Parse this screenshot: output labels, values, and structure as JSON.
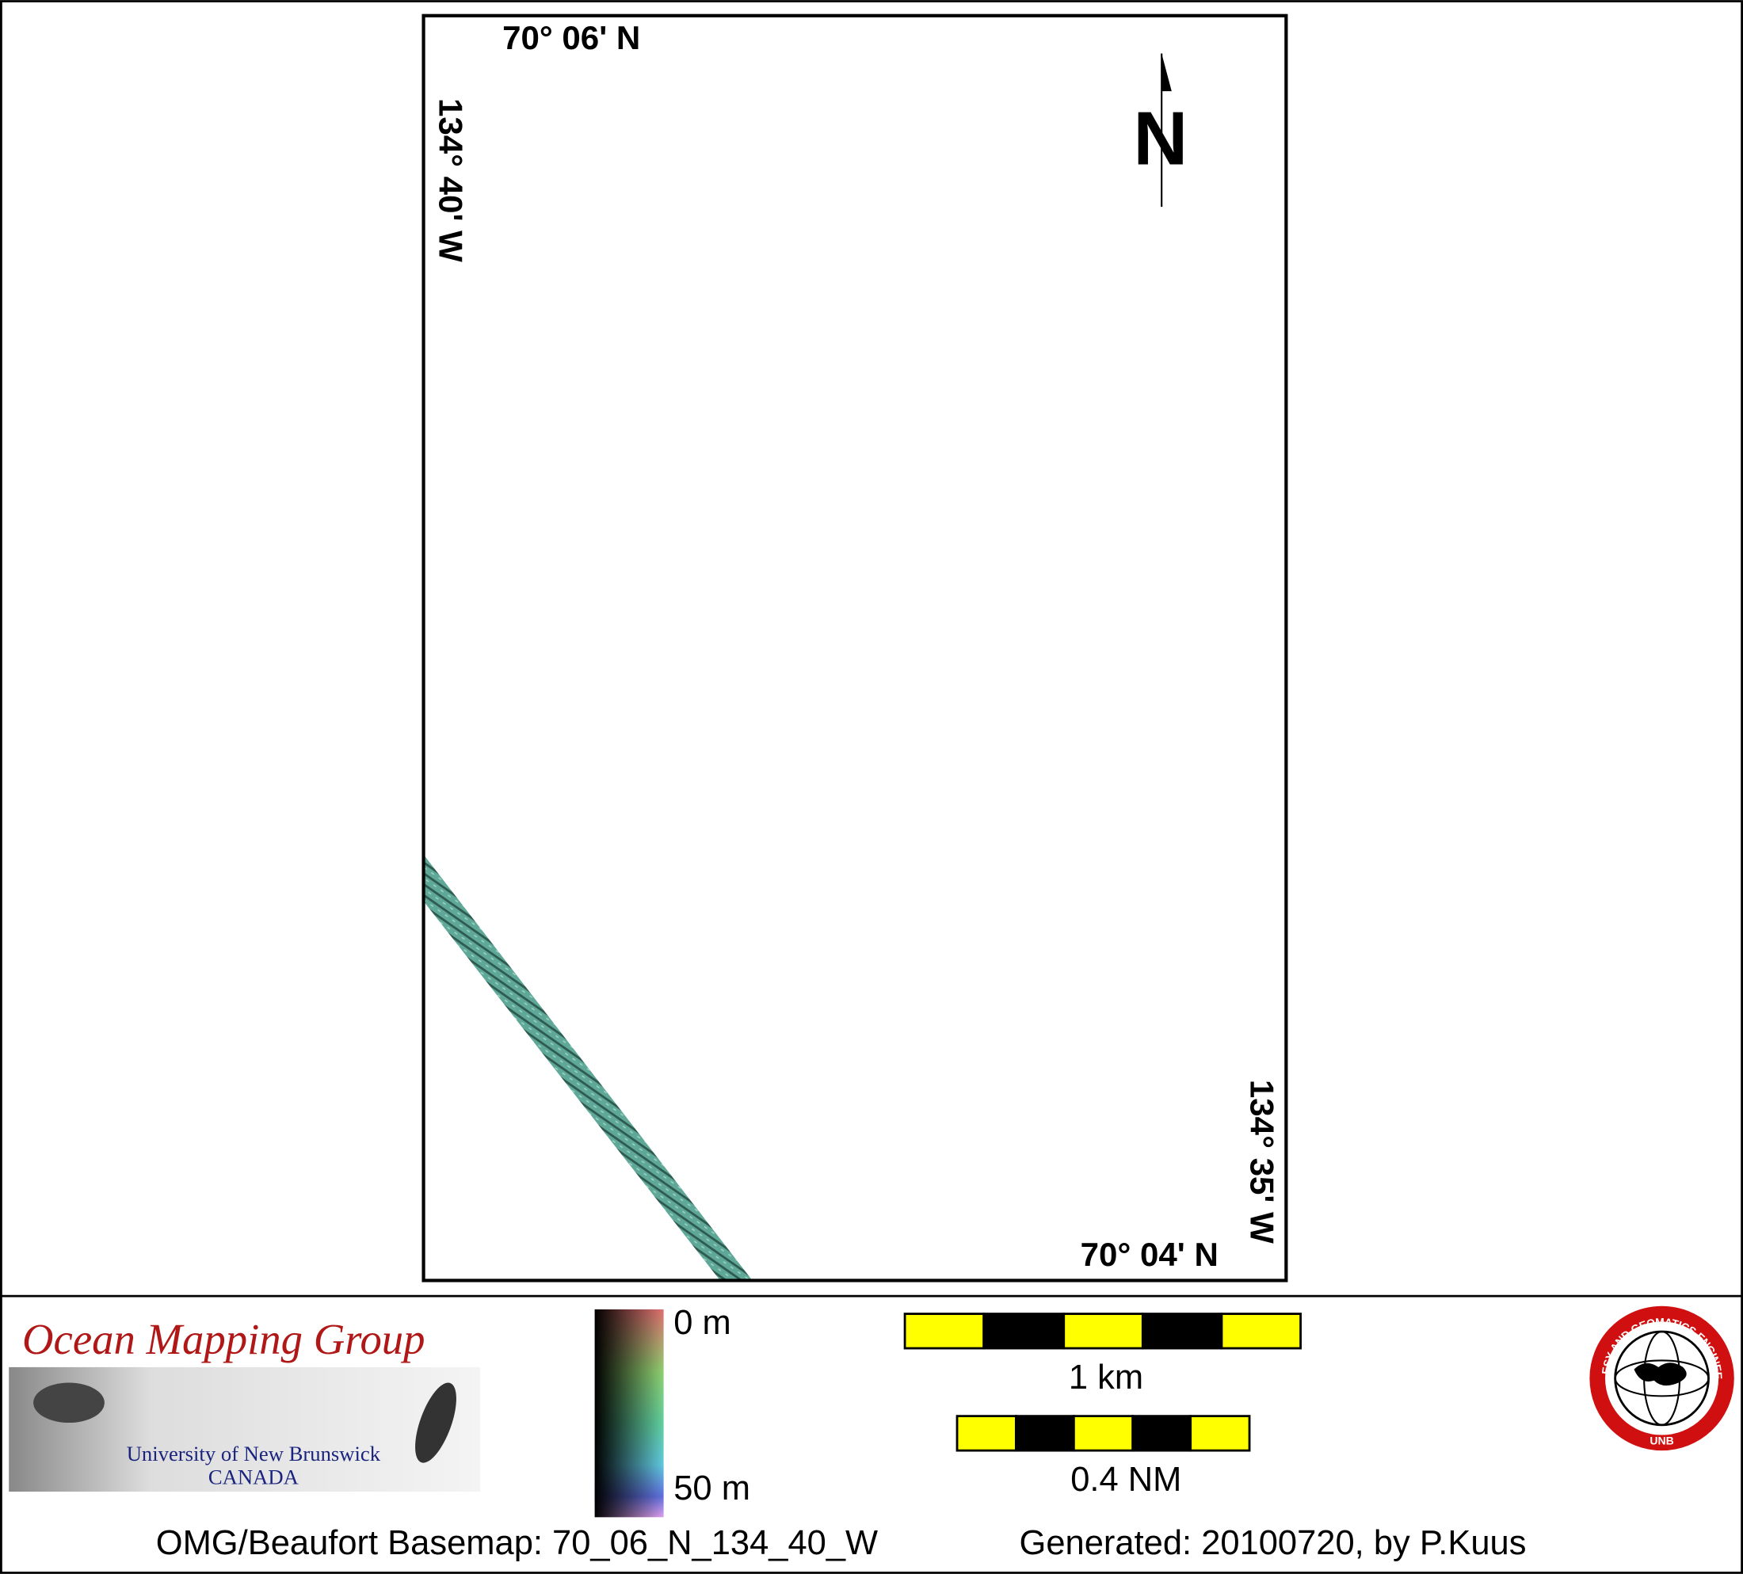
{
  "map": {
    "labels": {
      "top_latitude": "70° 06' N",
      "left_longitude": "134° 40' W",
      "right_longitude": "134° 35' W",
      "bottom_latitude": "70° 04' N",
      "north": "N"
    },
    "logo": {
      "title": "Ocean Mapping Group",
      "university": "University of New Brunswick",
      "country": "CANADA"
    },
    "colorbar": {
      "top_label": "0 m",
      "bottom_label": "50 m"
    },
    "scale_bars": {
      "km_label": "1 km",
      "nm_label": "0.4 NM"
    },
    "badge": {
      "ring_text": "GEODESY AND GEOMATICS ENGINEERING",
      "bottom_text": "UNB"
    },
    "footer": {
      "basemap": "OMG/Beaufort Basemap: 70_06_N_134_40_W",
      "generated": "Generated: 20100720, by P.Kuus"
    }
  }
}
